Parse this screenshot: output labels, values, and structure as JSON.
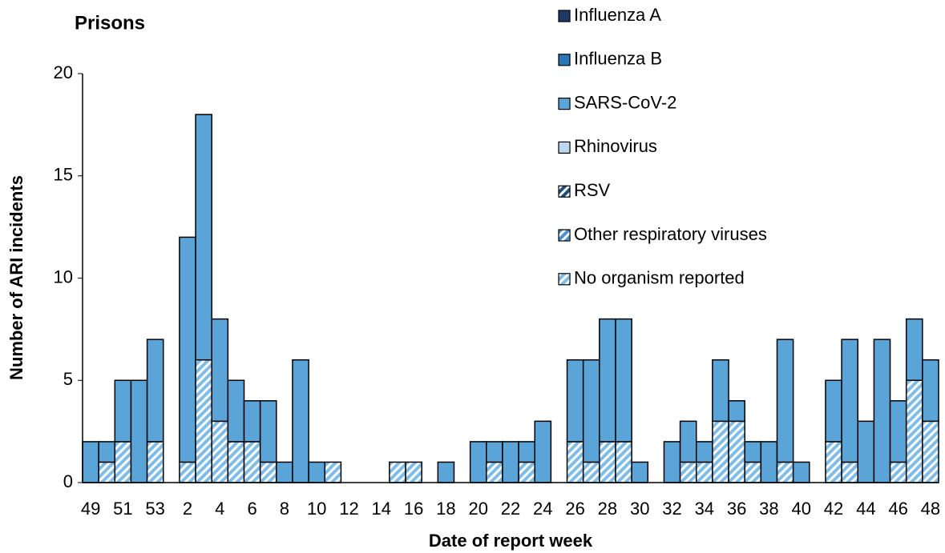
{
  "chart_data": {
    "type": "stacked_bar",
    "title": "Prisons",
    "x_label": "Date of report week",
    "y_label": "Number of ARI incidents",
    "categories": [
      "49",
      null,
      "51",
      null,
      "53",
      null,
      "2",
      null,
      "4",
      null,
      "6",
      null,
      "8",
      null,
      "10",
      null,
      "12",
      null,
      "14",
      null,
      "16",
      null,
      "18",
      null,
      "20",
      null,
      "22",
      null,
      "24",
      null,
      "26",
      null,
      "28",
      null,
      "30",
      null,
      "32",
      null,
      "34",
      null,
      "36",
      null,
      "38",
      null,
      "40",
      null,
      "42",
      null,
      "44",
      null,
      "46",
      null,
      "48"
    ],
    "ylim": [
      0,
      20
    ],
    "yticks": [
      0,
      5,
      10,
      15,
      20
    ],
    "series": [
      {
        "name": "Influenza A",
        "color": "#1f3864",
        "hatched": false,
        "values": [
          0,
          0,
          0,
          0,
          0,
          0,
          0,
          0,
          0,
          0,
          0,
          0,
          0,
          0,
          0,
          0,
          0,
          0,
          0,
          0,
          0,
          0,
          0,
          0,
          0,
          0,
          0,
          0,
          0,
          0,
          0,
          0,
          0,
          0,
          0,
          0,
          0,
          0,
          0,
          0,
          0,
          0,
          0,
          0,
          0,
          0,
          0,
          0,
          0,
          0,
          0,
          0,
          0
        ]
      },
      {
        "name": "Influenza B",
        "color": "#2e75b6",
        "hatched": false,
        "values": [
          0,
          0,
          0,
          0,
          0,
          0,
          0,
          0,
          0,
          0,
          0,
          0,
          0,
          0,
          0,
          0,
          0,
          0,
          0,
          0,
          0,
          0,
          0,
          0,
          0,
          0,
          0,
          0,
          0,
          0,
          0,
          0,
          0,
          0,
          0,
          0,
          0,
          0,
          0,
          0,
          0,
          0,
          0,
          0,
          0,
          0,
          0,
          0,
          0,
          0,
          0,
          0,
          0
        ]
      },
      {
        "name": "SARS-CoV-2",
        "color": "#5ba4d8",
        "hatched": false,
        "values": [
          2,
          1,
          3,
          5,
          5,
          0,
          11,
          12,
          5,
          3,
          2,
          3,
          1,
          6,
          1,
          0,
          0,
          0,
          0,
          0,
          0,
          0,
          1,
          0,
          2,
          1,
          2,
          1,
          3,
          0,
          4,
          5,
          6,
          6,
          1,
          0,
          2,
          2,
          1,
          3,
          1,
          1,
          2,
          6,
          1,
          0,
          3,
          6,
          3,
          7,
          3,
          3,
          3
        ]
      },
      {
        "name": "Rhinovirus",
        "color": "#bdd7ee",
        "hatched": false,
        "values": [
          0,
          0,
          0,
          0,
          0,
          0,
          0,
          0,
          0,
          0,
          0,
          0,
          0,
          0,
          0,
          0,
          0,
          0,
          0,
          0,
          0,
          0,
          0,
          0,
          0,
          0,
          0,
          0,
          0,
          0,
          0,
          0,
          0,
          0,
          0,
          0,
          0,
          0,
          0,
          0,
          0,
          0,
          0,
          0,
          0,
          0,
          0,
          0,
          0,
          0,
          0,
          0,
          0
        ]
      },
      {
        "name": "RSV",
        "color": "#1f4e79",
        "hatched": true,
        "values": [
          0,
          0,
          0,
          0,
          0,
          0,
          0,
          0,
          0,
          0,
          0,
          0,
          0,
          0,
          0,
          0,
          0,
          0,
          0,
          0,
          0,
          0,
          0,
          0,
          0,
          0,
          0,
          0,
          0,
          0,
          0,
          0,
          0,
          0,
          0,
          0,
          0,
          0,
          0,
          0,
          0,
          0,
          0,
          0,
          0,
          0,
          0,
          0,
          0,
          0,
          0,
          0,
          0
        ]
      },
      {
        "name": "Other respiratory viruses",
        "color": "#4a90d0",
        "hatched": true,
        "values": [
          0,
          0,
          0,
          0,
          0,
          0,
          0,
          0,
          0,
          0,
          0,
          0,
          0,
          0,
          0,
          0,
          0,
          0,
          0,
          0,
          0,
          0,
          0,
          0,
          0,
          0,
          0,
          0,
          0,
          0,
          0,
          0,
          0,
          0,
          0,
          0,
          0,
          0,
          0,
          0,
          0,
          0,
          0,
          0,
          0,
          0,
          0,
          0,
          0,
          0,
          0,
          0,
          0
        ]
      },
      {
        "name": "No organism reported",
        "color": "#7fbde6",
        "hatched": true,
        "values": [
          0,
          1,
          2,
          0,
          2,
          0,
          1,
          6,
          3,
          2,
          2,
          1,
          0,
          0,
          0,
          1,
          0,
          0,
          0,
          1,
          1,
          0,
          0,
          0,
          0,
          1,
          0,
          1,
          0,
          0,
          2,
          1,
          2,
          2,
          0,
          0,
          0,
          1,
          1,
          3,
          3,
          1,
          0,
          1,
          0,
          0,
          2,
          1,
          0,
          0,
          1,
          5,
          3
        ]
      }
    ]
  }
}
